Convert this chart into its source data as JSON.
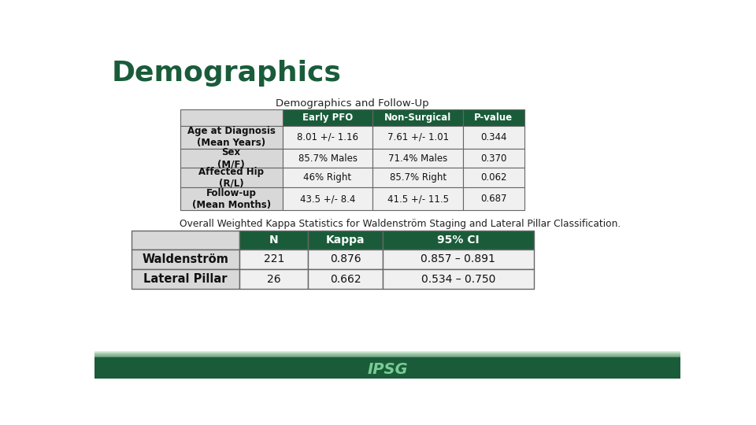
{
  "title": "Demographics",
  "title_color": "#1a5c3a",
  "bg_color": "#ffffff",
  "footer_color": "#1a5c3a",
  "table1_title": "Demographics and Follow-Up",
  "table1_headers": [
    "",
    "Early PFO",
    "Non-Surgical",
    "P-value"
  ],
  "table1_rows": [
    [
      "Age at Diagnosis\n(Mean Years)",
      "8.01 +/- 1.16",
      "7.61 +/- 1.01",
      "0.344"
    ],
    [
      "Sex\n(M/F)",
      "85.7% Males",
      "71.4% Males",
      "0.370"
    ],
    [
      "Affected Hip\n(R/L)",
      "46% Right",
      "85.7% Right",
      "0.062"
    ],
    [
      "Follow-up\n(Mean Months)",
      "43.5 +/- 8.4",
      "41.5 +/- 11.5",
      "0.687"
    ]
  ],
  "table1_header_bg": "#1a5c3a",
  "table1_header_fg": "#ffffff",
  "table1_label_bg": "#d8d8d8",
  "table1_label_fg": "#111111",
  "table1_data_bg": "#f0f0f0",
  "table1_data_fg": "#111111",
  "table1_border_color": "#666666",
  "table2_label": "Overall Weighted Kappa Statistics for Waldenström Staging and Lateral Pillar Classification.",
  "table2_headers": [
    "",
    "N",
    "Kappa",
    "95% CI"
  ],
  "table2_rows": [
    [
      "Waldenström",
      "221",
      "0.876",
      "0.857 – 0.891"
    ],
    [
      "Lateral Pillar",
      "26",
      "0.662",
      "0.534 – 0.750"
    ]
  ],
  "table2_header_bg": "#1a5c3a",
  "table2_header_fg": "#ffffff",
  "table2_label_bg": "#d8d8d8",
  "table2_label_fg": "#111111",
  "table2_data_bg": "#f0f0f0",
  "table2_data_fg": "#111111",
  "table2_border_color": "#666666",
  "ipsg_text": "IPSG",
  "ipsg_color": "#7acc96"
}
